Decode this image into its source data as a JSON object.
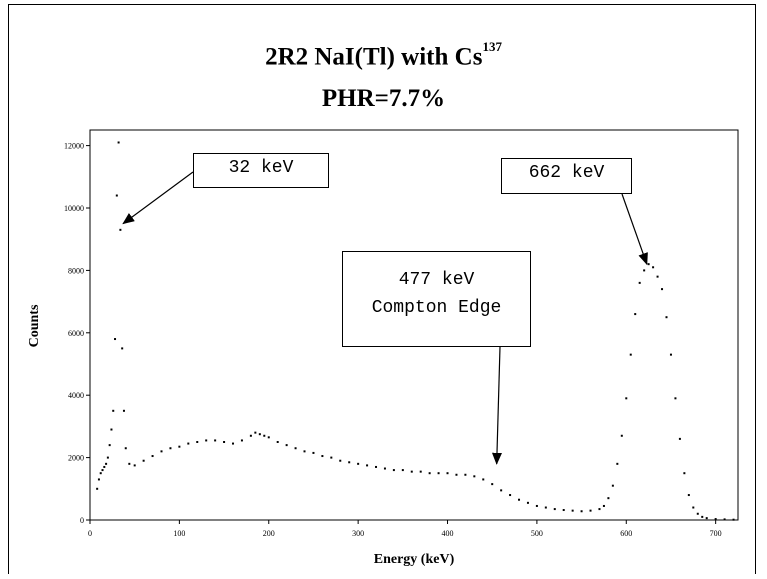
{
  "chart_data": {
    "type": "scatter",
    "title": "2R2 NaI(Tl) with Cs",
    "title_superscript": "137",
    "subtitle": "PHR=7.7%",
    "xlabel": "Energy (keV)",
    "ylabel": "Counts",
    "xlim": [
      0,
      725
    ],
    "ylim": [
      0,
      12500
    ],
    "xticks": [
      "0",
      "100",
      "200",
      "300",
      "400",
      "500",
      "600",
      "700"
    ],
    "yticks": [
      "0",
      "2000",
      "4000",
      "6000",
      "8000",
      "10000",
      "12000"
    ],
    "grid": false,
    "legend": "none",
    "marker_color": "#000000",
    "annotations": [
      {
        "lines": [
          "32 keV"
        ],
        "target": [
          37,
          9500
        ]
      },
      {
        "lines": [
          "477 keV",
          "Compton Edge"
        ],
        "target": [
          455,
          1800
        ]
      },
      {
        "lines": [
          "662 keV"
        ],
        "target": [
          623,
          8200
        ]
      }
    ],
    "series": [
      {
        "x": [
          8,
          10,
          12,
          14,
          16,
          18,
          20,
          22,
          24,
          26,
          28,
          30,
          32,
          34,
          36,
          38,
          40,
          44,
          50,
          60,
          70,
          80,
          90,
          100,
          110,
          120,
          130,
          140,
          150,
          160,
          170,
          180,
          185,
          190,
          195,
          200,
          210,
          220,
          230,
          240,
          250,
          260,
          270,
          280,
          290,
          300,
          310,
          320,
          330,
          340,
          350,
          360,
          370,
          380,
          390,
          400,
          410,
          420,
          430,
          440,
          450,
          460,
          470,
          480,
          490,
          500,
          510,
          520,
          530,
          540,
          550,
          560,
          570,
          575,
          580,
          585,
          590,
          595,
          600,
          605,
          610,
          615,
          620,
          625,
          630,
          635,
          640,
          645,
          650,
          655,
          660,
          665,
          670,
          675,
          680,
          685,
          690,
          700,
          710,
          720
        ],
        "y": [
          1000,
          1300,
          1500,
          1600,
          1700,
          1800,
          2000,
          2400,
          2900,
          3500,
          5800,
          10400,
          12100,
          9300,
          5500,
          3500,
          2300,
          1800,
          1750,
          1900,
          2050,
          2200,
          2300,
          2350,
          2450,
          2500,
          2550,
          2550,
          2500,
          2450,
          2550,
          2700,
          2800,
          2750,
          2700,
          2650,
          2500,
          2400,
          2300,
          2200,
          2150,
          2050,
          2000,
          1900,
          1850,
          1800,
          1750,
          1700,
          1650,
          1600,
          1600,
          1550,
          1550,
          1500,
          1500,
          1500,
          1450,
          1450,
          1400,
          1300,
          1150,
          950,
          800,
          650,
          550,
          450,
          400,
          350,
          320,
          300,
          280,
          300,
          350,
          450,
          700,
          1100,
          1800,
          2700,
          3900,
          5300,
          6600,
          7600,
          8000,
          8200,
          8100,
          7800,
          7400,
          6500,
          5300,
          3900,
          2600,
          1500,
          800,
          400,
          200,
          100,
          60,
          30,
          20,
          10
        ]
      }
    ]
  }
}
